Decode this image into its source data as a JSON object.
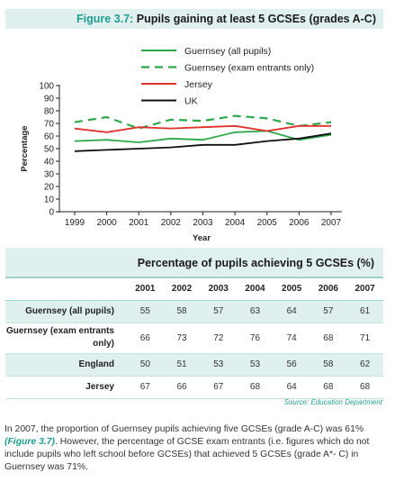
{
  "figure": {
    "number": "Figure 3.7:",
    "title": "Pupils gaining at least 5 GCSEs (grades A-C)"
  },
  "chart_data": {
    "type": "line",
    "x": [
      "1999",
      "2000",
      "2001",
      "2002",
      "2003",
      "2004",
      "2005",
      "2006",
      "2007"
    ],
    "ylabel": "Percentage",
    "xlabel": "Year",
    "ylim": [
      0,
      100
    ],
    "yticks": [
      0,
      10,
      20,
      30,
      40,
      50,
      60,
      70,
      80,
      90,
      100
    ],
    "legend_position": "top-right",
    "grid": false,
    "series": [
      {
        "name": "Guernsey (all pupils)",
        "color": "#2ea84a",
        "dash": "solid",
        "values": [
          56,
          57,
          55,
          58,
          57,
          63,
          64,
          57,
          61
        ]
      },
      {
        "name": "Guernsey (exam entrants only)",
        "color": "#2ea84a",
        "dash": "dashed",
        "values": [
          71,
          75,
          66,
          73,
          72,
          76,
          74,
          68,
          71
        ]
      },
      {
        "name": "Jersey",
        "color": "#e0312b",
        "dash": "solid",
        "values": [
          66,
          63,
          67,
          66,
          67,
          68,
          64,
          68,
          68
        ]
      },
      {
        "name": "UK",
        "color": "#111111",
        "dash": "solid",
        "values": [
          48,
          49,
          50,
          51,
          53,
          53,
          56,
          58,
          62
        ]
      }
    ]
  },
  "table": {
    "title": "Percentage of pupils achieving 5 GCSEs (%)",
    "years": [
      "2001",
      "2002",
      "2003",
      "2004",
      "2005",
      "2006",
      "2007"
    ],
    "rows": [
      {
        "label": "Guernsey (all pupils)",
        "values": [
          "55",
          "58",
          "57",
          "63",
          "64",
          "57",
          "61"
        ]
      },
      {
        "label": "Guernsey (exam entrants only)",
        "values": [
          "66",
          "73",
          "72",
          "76",
          "74",
          "68",
          "71"
        ]
      },
      {
        "label": "England",
        "values": [
          "50",
          "51",
          "53",
          "53",
          "56",
          "58",
          "62"
        ]
      },
      {
        "label": "Jersey",
        "values": [
          "67",
          "66",
          "67",
          "68",
          "64",
          "68",
          "68"
        ]
      }
    ]
  },
  "source": "Source: Education Department",
  "paragraph": {
    "p1": "In 2007, the proportion of Guernsey pupils achieving five GCSEs (grade A-C) was 61% ",
    "ref": "(Figure 3.7)",
    "p2": ".  However, the percentage of GCSE exam entrants (i.e. figures which do not include pupils who left school before GCSEs) that achieved 5 GCSEs (grade A*- C) in Guernsey was 71%."
  }
}
